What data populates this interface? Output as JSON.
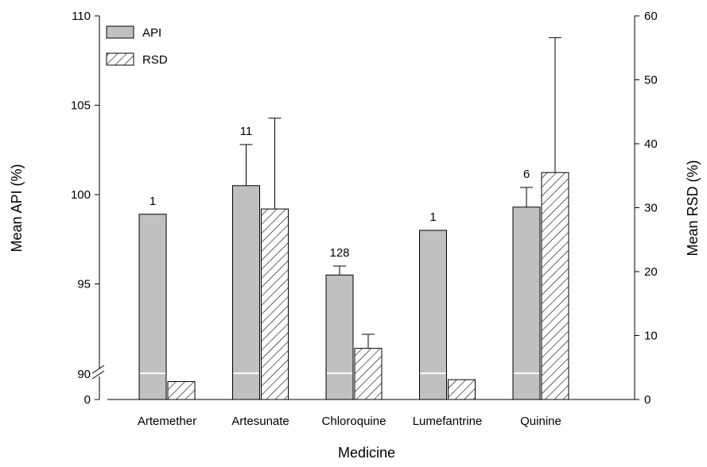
{
  "chart_data": {
    "type": "bar",
    "xlabel": "Medicine",
    "ylabel_left": "Mean API (%)",
    "ylabel_right": "Mean RSD (%)",
    "categories": [
      "Artemether",
      "Artesunate",
      "Chloroquine",
      "Lumefantrine",
      "Quinine"
    ],
    "left_axis": {
      "break_ticks": [
        "0",
        "90"
      ],
      "ticks": [
        95,
        100,
        105,
        110
      ],
      "ylim": [
        90,
        110
      ],
      "broken": true
    },
    "right_axis": {
      "ticks": [
        0,
        10,
        20,
        30,
        40,
        50,
        60
      ],
      "ylim": [
        0,
        60
      ]
    },
    "series": [
      {
        "name": "API",
        "axis": "left",
        "fill": "#c0c0c0",
        "values": [
          98.9,
          100.5,
          95.5,
          98.0,
          99.3
        ],
        "error_upper": [
          null,
          102.8,
          96.0,
          null,
          100.4
        ]
      },
      {
        "name": "RSD",
        "axis": "right",
        "fill": "hatch",
        "values": [
          2.8,
          29.8,
          8.0,
          3.1,
          35.5
        ],
        "error_upper": [
          null,
          44.0,
          10.2,
          null,
          56.6
        ]
      }
    ],
    "annotations": [
      "1",
      "11",
      "128",
      "1",
      "6"
    ],
    "legend": {
      "position": "top-left",
      "entries": [
        "API",
        "RSD"
      ]
    }
  }
}
